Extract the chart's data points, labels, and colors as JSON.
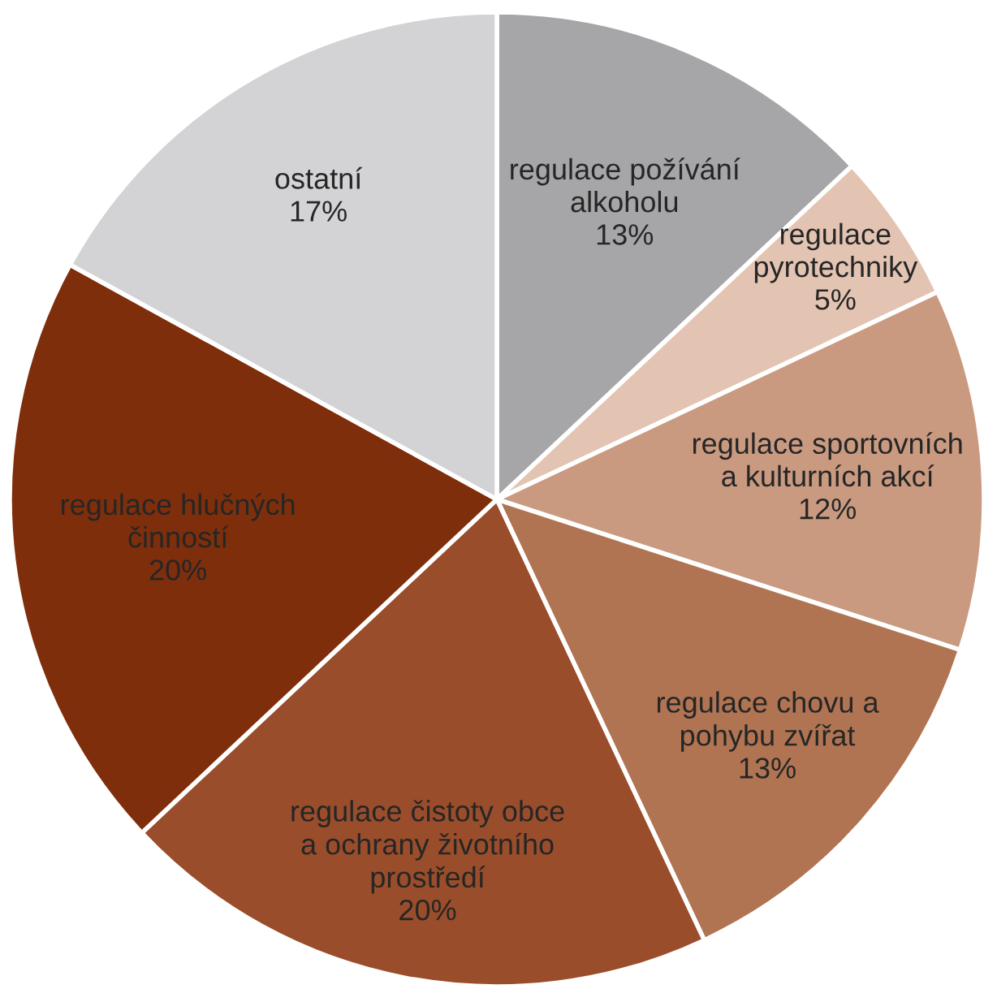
{
  "chart_data": {
    "type": "pie",
    "categories": [
      "regulace požívání\nalkoholu",
      "regulace\npyrotechniky",
      "regulace sportovních\na kulturních akcí",
      "regulace chovu a\npohybu zvířat",
      "regulace čistoty obce\na ochrany životního\nprostředí",
      "regulace hlučných\nčinností",
      "ostatní"
    ],
    "values": [
      13,
      5,
      12,
      13,
      20,
      20,
      17
    ],
    "colors": [
      "#a6a6a8",
      "#e3c4b2",
      "#c99a80",
      "#b07452",
      "#9a4d2a",
      "#7f2e0b",
      "#d3d3d5"
    ],
    "value_labels": [
      "13%",
      "5%",
      "12%",
      "13%",
      "20%",
      "20%",
      "17%"
    ]
  }
}
